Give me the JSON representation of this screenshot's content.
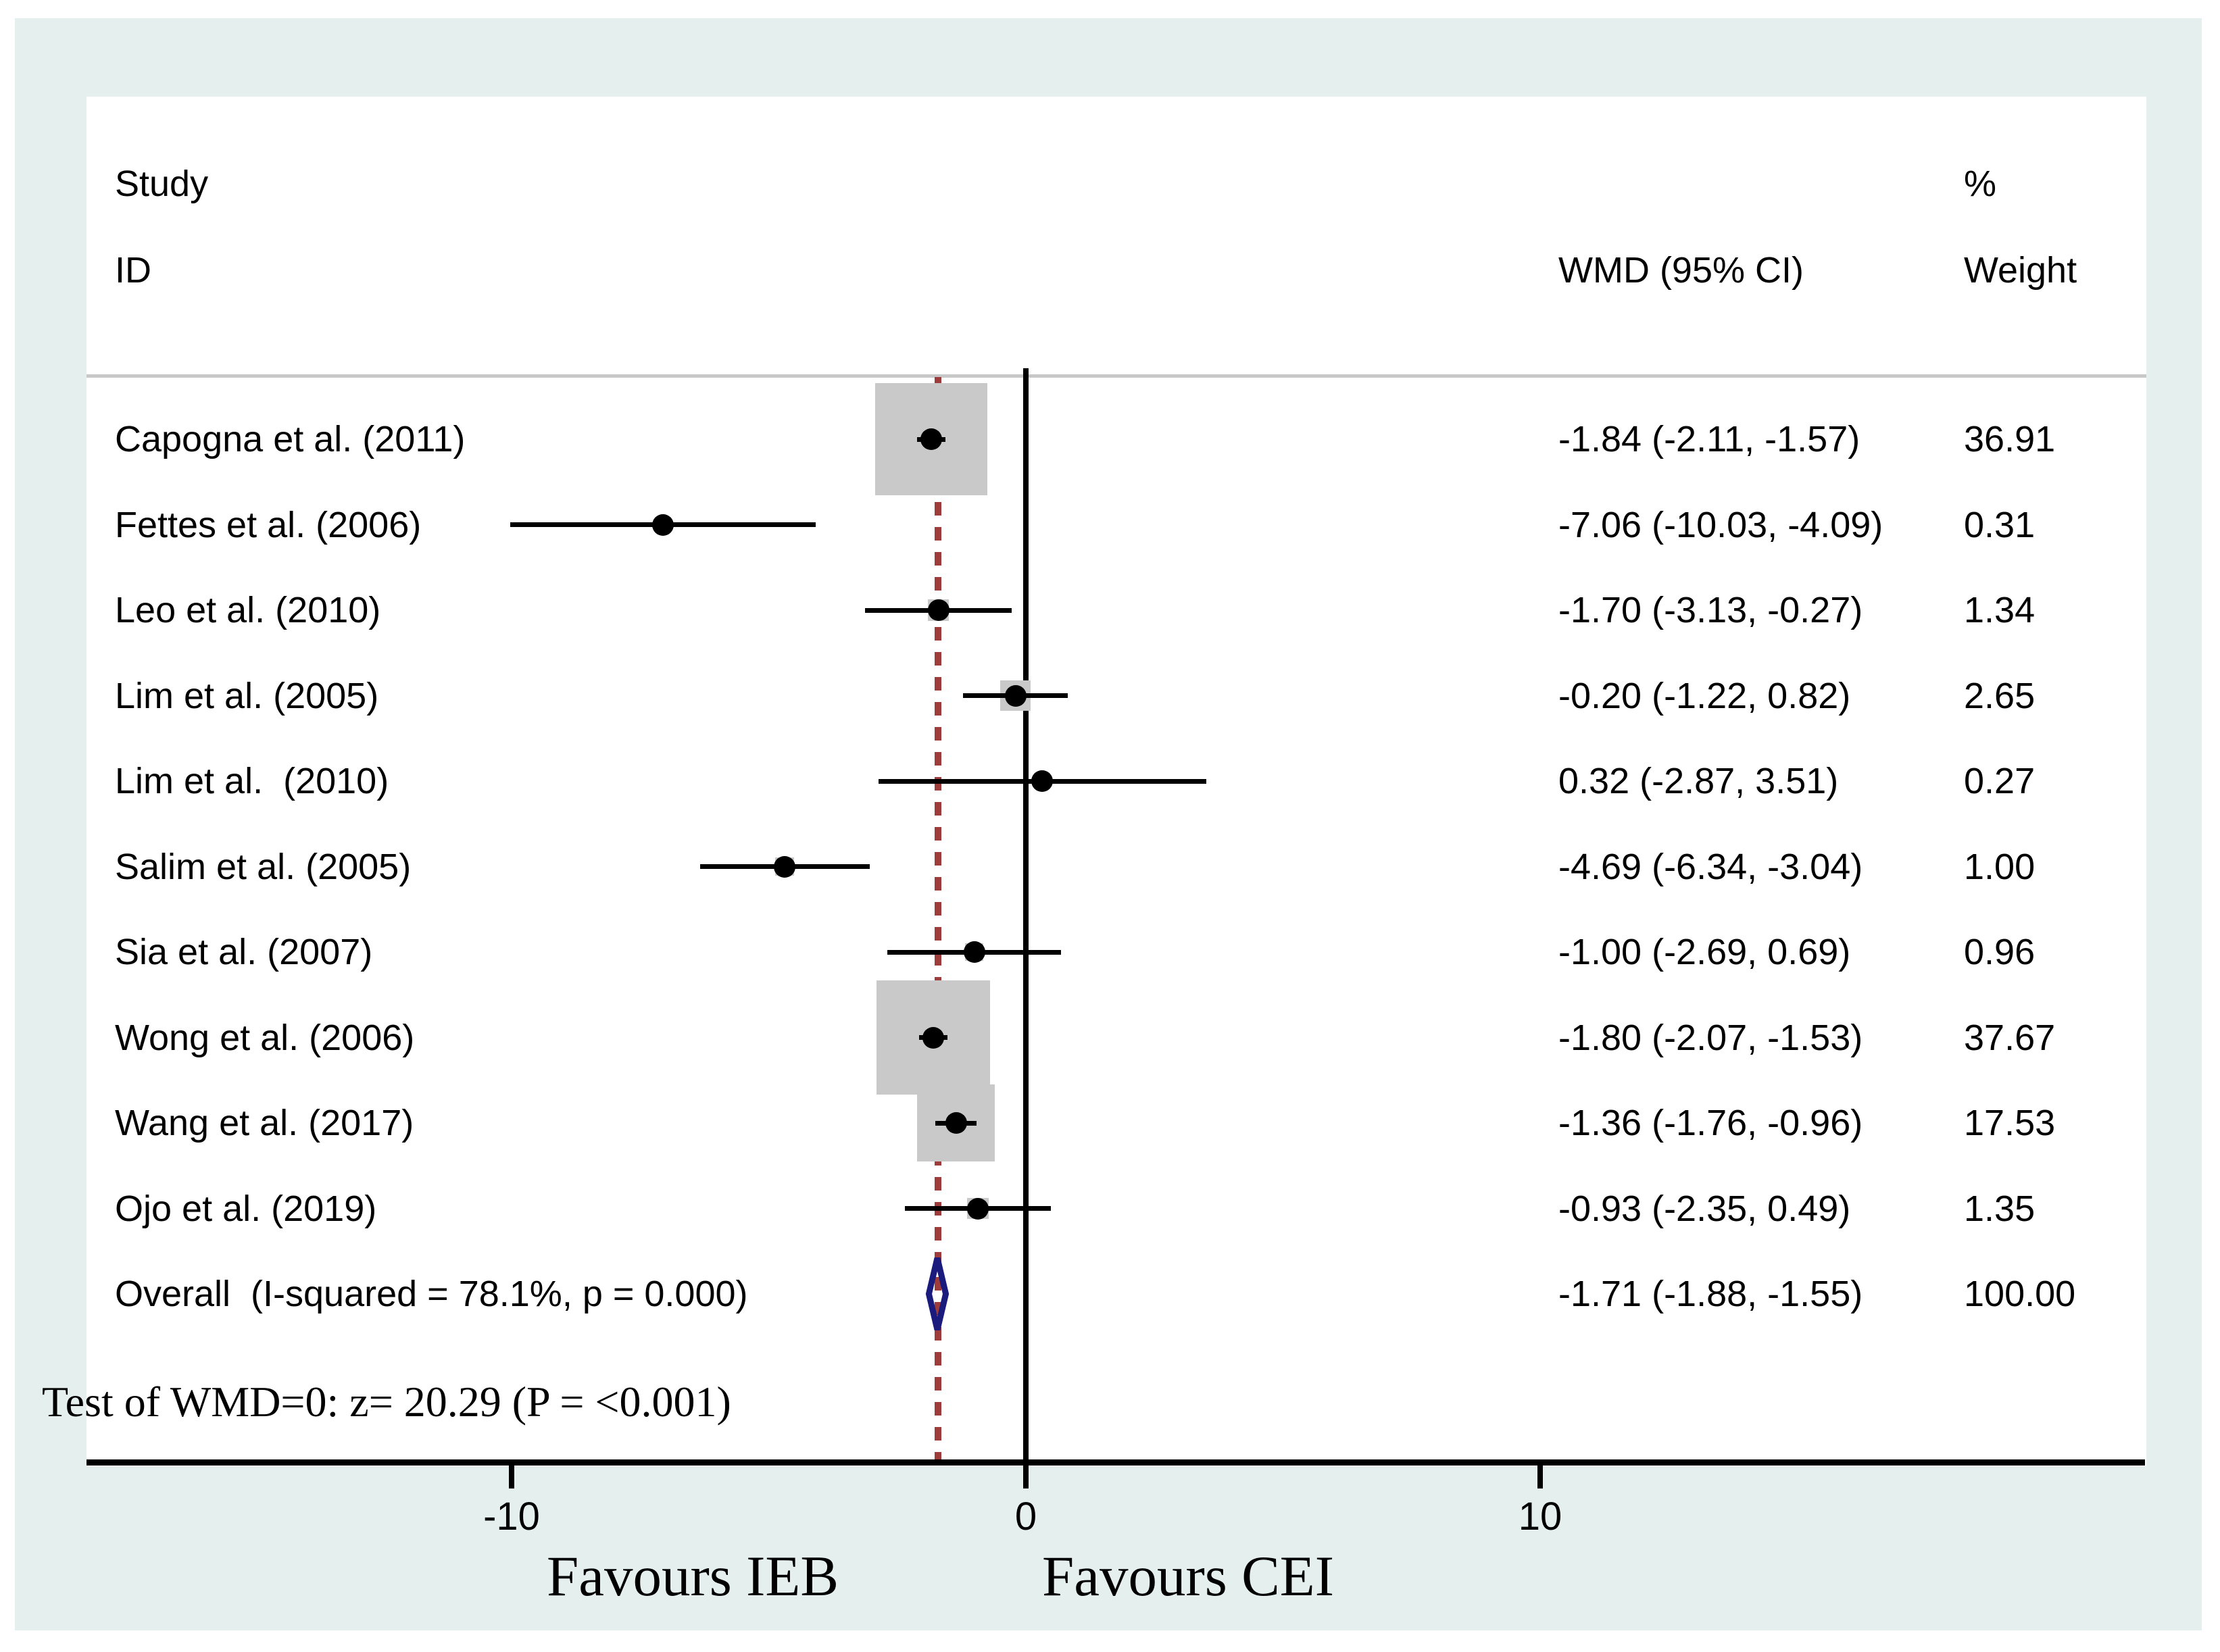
{
  "chart_data": {
    "type": "forest",
    "effect_measure": "WMD",
    "columns": {
      "study_line1": "Study",
      "study_line2": "ID",
      "effect": "WMD (95% CI)",
      "weight_line1": "%",
      "weight_line2": "Weight"
    },
    "x_axis": {
      "ticks": [
        {
          "value": -10,
          "label": "-10"
        },
        {
          "value": 0,
          "label": "0"
        },
        {
          "value": 10,
          "label": "10"
        }
      ],
      "left_label": "Favours IEB",
      "right_label": "Favours CEI",
      "null_line_value": 0,
      "overall_line_value": -1.71
    },
    "studies": [
      {
        "label": "Capogna et al. (2011)",
        "wmd": -1.84,
        "ci_low": -2.11,
        "ci_high": -1.57,
        "weight": 36.91,
        "effect_display": "-1.84 (-2.11, -1.57)",
        "weight_display": "36.91"
      },
      {
        "label": "Fettes et al. (2006)",
        "wmd": -7.06,
        "ci_low": -10.03,
        "ci_high": -4.09,
        "weight": 0.31,
        "effect_display": "-7.06 (-10.03, -4.09)",
        "weight_display": "0.31"
      },
      {
        "label": "Leo et al. (2010)",
        "wmd": -1.7,
        "ci_low": -3.13,
        "ci_high": -0.27,
        "weight": 1.34,
        "effect_display": "-1.70 (-3.13, -0.27)",
        "weight_display": "1.34"
      },
      {
        "label": "Lim et al. (2005)",
        "wmd": -0.2,
        "ci_low": -1.22,
        "ci_high": 0.82,
        "weight": 2.65,
        "effect_display": "-0.20 (-1.22, 0.82)",
        "weight_display": "2.65"
      },
      {
        "label": "Lim et al.  (2010)",
        "wmd": 0.32,
        "ci_low": -2.87,
        "ci_high": 3.51,
        "weight": 0.27,
        "effect_display": "0.32 (-2.87, 3.51)",
        "weight_display": "0.27"
      },
      {
        "label": "Salim et al. (2005)",
        "wmd": -4.69,
        "ci_low": -6.34,
        "ci_high": -3.04,
        "weight": 1.0,
        "effect_display": "-4.69 (-6.34, -3.04)",
        "weight_display": "1.00"
      },
      {
        "label": "Sia et al. (2007)",
        "wmd": -1.0,
        "ci_low": -2.69,
        "ci_high": 0.69,
        "weight": 0.96,
        "effect_display": "-1.00 (-2.69, 0.69)",
        "weight_display": "0.96"
      },
      {
        "label": "Wong et al. (2006)",
        "wmd": -1.8,
        "ci_low": -2.07,
        "ci_high": -1.53,
        "weight": 37.67,
        "effect_display": "-1.80 (-2.07, -1.53)",
        "weight_display": "37.67"
      },
      {
        "label": "Wang et al. (2017)",
        "wmd": -1.36,
        "ci_low": -1.76,
        "ci_high": -0.96,
        "weight": 17.53,
        "effect_display": "-1.36 (-1.76, -0.96)",
        "weight_display": "17.53"
      },
      {
        "label": "Ojo et al. (2019)",
        "wmd": -0.93,
        "ci_low": -2.35,
        "ci_high": 0.49,
        "weight": 1.35,
        "effect_display": "-0.93 (-2.35, 0.49)",
        "weight_display": "1.35"
      }
    ],
    "overall": {
      "label": "Overall  (I-squared = 78.1%, p = 0.000)",
      "wmd": -1.71,
      "ci_low": -1.88,
      "ci_high": -1.55,
      "effect_display": "-1.71 (-1.88, -1.55)",
      "weight_display": "100.00"
    },
    "footnote": "Test of WMD=0: z= 20.29 (P = <0.001)"
  },
  "colors": {
    "background": "#e4efee",
    "panel": "#ffffff",
    "square": "#c9c9c9",
    "separator": "#c8c8c8",
    "ci_line": "#000000",
    "null_line": "#000000",
    "overall_line": "#9e3b3b",
    "diamond": "#1b1b7e",
    "text": "#000000"
  }
}
